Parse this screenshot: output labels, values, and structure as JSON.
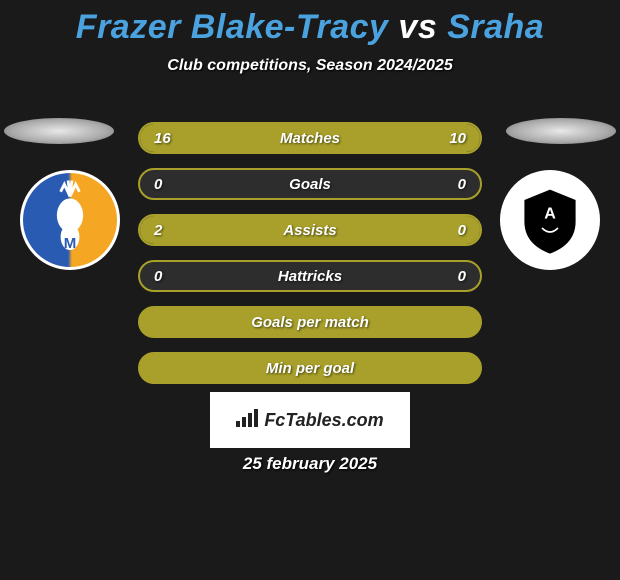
{
  "title": {
    "player1": "Frazer Blake-Tracy",
    "vs": "vs",
    "player2": "Sraha"
  },
  "title_colors": {
    "player1": "#4aa3df",
    "vs": "#ffffff",
    "player2": "#4aa3df"
  },
  "subtitle": "Club competitions, Season 2024/2025",
  "stats": {
    "bar_color_left": "#a8a02a",
    "bar_color_right": "#a8a02a",
    "bar_empty_color": "#2d2d2d",
    "bar_full_color": "#a8a02a",
    "border_color": "#a8a02a",
    "label_fontsize": 15,
    "value_fontsize": 15,
    "rows": [
      {
        "label": "Matches",
        "left_val": "16",
        "right_val": "10",
        "left_pct": 61.5,
        "right_pct": 38.5
      },
      {
        "label": "Goals",
        "left_val": "0",
        "right_val": "0",
        "left_pct": 0,
        "right_pct": 0
      },
      {
        "label": "Assists",
        "left_val": "2",
        "right_val": "0",
        "left_pct": 100,
        "right_pct": 0
      },
      {
        "label": "Hattricks",
        "left_val": "0",
        "right_val": "0",
        "left_pct": 0,
        "right_pct": 0
      },
      {
        "label": "Goals per match",
        "left_val": "",
        "right_val": "",
        "left_pct": 0,
        "right_pct": 0
      },
      {
        "label": "Min per goal",
        "left_val": "",
        "right_val": "",
        "left_pct": 0,
        "right_pct": 0
      }
    ]
  },
  "watermark": {
    "text": "FcTables.com"
  },
  "date": "25 february 2025",
  "colors": {
    "background": "#1a1a1a",
    "text": "#ffffff"
  },
  "crests": {
    "left": {
      "name": "mansfield-town-crest",
      "colors": [
        "#2a5bb3",
        "#f5a623",
        "#ffffff"
      ]
    },
    "right": {
      "name": "academico-viseu-crest",
      "colors": [
        "#000000",
        "#ffffff"
      ]
    }
  }
}
